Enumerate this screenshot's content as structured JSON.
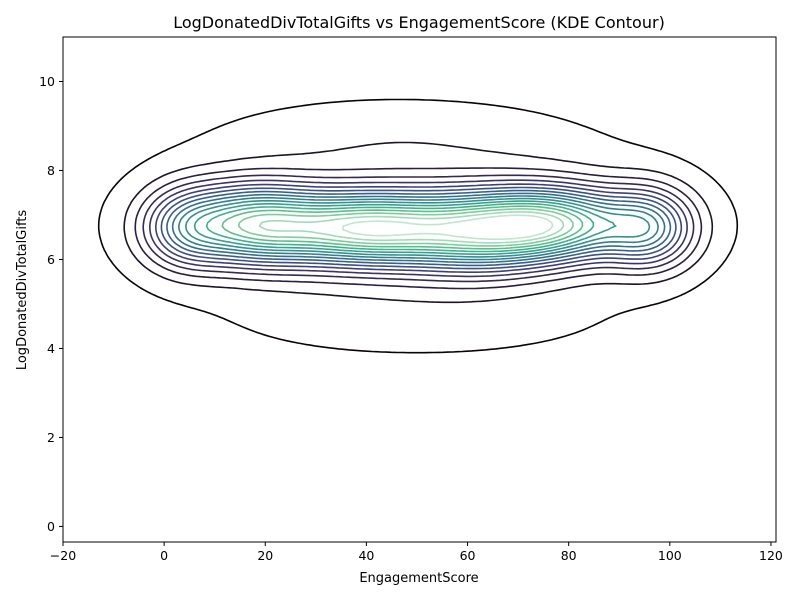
{
  "chart_data": {
    "type": "kde-contour",
    "title": "LogDonatedDivTotalGifts vs EngagementScore (KDE Contour)",
    "xlabel": "EngagementScore",
    "ylabel": "LogDonatedDivTotalGifts",
    "xlim": [
      -20,
      121
    ],
    "ylim": [
      -0.35,
      11.0
    ],
    "xticks": [
      -20,
      0,
      20,
      40,
      60,
      80,
      100,
      120
    ],
    "yticks": [
      0,
      2,
      4,
      6,
      8,
      10
    ],
    "grid": false,
    "legend": "none",
    "colormap": "mako",
    "level_colors": [
      "#0b0405",
      "#1e1428",
      "#2b1e3e",
      "#362950",
      "#3b3566",
      "#3d4178",
      "#3b5083",
      "#366088",
      "#34708b",
      "#347f8e",
      "#35908f",
      "#38a08f",
      "#42b08c",
      "#5bbf8c",
      "#7fcc9d",
      "#a3daba",
      "#c1e6cf"
    ],
    "kernels": [
      {
        "x": 40,
        "y": 6.7,
        "sx": 13,
        "sy": 0.55,
        "w": 1.0
      },
      {
        "x": 77,
        "y": 6.8,
        "sx": 11,
        "sy": 0.55,
        "w": 0.88
      },
      {
        "x": 17,
        "y": 6.8,
        "sx": 9,
        "sy": 0.6,
        "w": 0.75
      },
      {
        "x": 62,
        "y": 6.6,
        "sx": 10,
        "sy": 0.6,
        "w": 0.55
      },
      {
        "x": 96,
        "y": 6.7,
        "sx": 6,
        "sy": 0.6,
        "w": 0.5
      },
      {
        "x": 4,
        "y": 6.7,
        "sx": 6,
        "sy": 0.6,
        "w": 0.4
      },
      {
        "x": 50,
        "y": 6.8,
        "sx": 35,
        "sy": 1.35,
        "w": 0.18
      },
      {
        "x": 45,
        "y": 8.9,
        "sx": 25,
        "sy": 0.6,
        "w": 0.05
      },
      {
        "x": 50,
        "y": 4.4,
        "sx": 30,
        "sy": 0.6,
        "w": 0.04
      }
    ]
  }
}
